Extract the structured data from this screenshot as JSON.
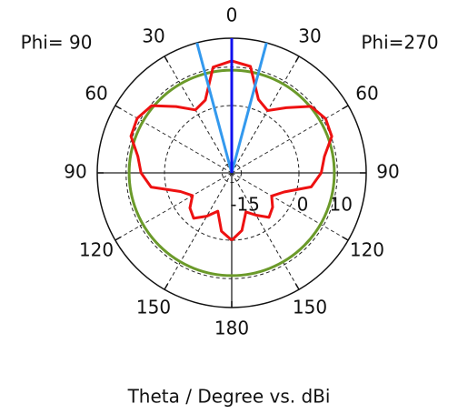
{
  "chart_data": {
    "type": "polar",
    "title": "Theta / Degree vs. dBi",
    "left_label": "Phi= 90",
    "right_label": "Phi=270",
    "x": [
      -180,
      -170,
      -160,
      -150,
      -140,
      -130,
      -120,
      -110,
      -100,
      -90,
      -80,
      -70,
      -60,
      -50,
      -40,
      -30,
      -20,
      -10,
      0,
      10,
      20,
      30,
      40,
      50,
      60,
      70,
      80,
      90,
      100,
      110,
      120,
      130,
      140,
      150,
      160,
      170,
      180
    ],
    "series": [
      {
        "color": "#ee1111",
        "values": [
          0.0,
          -2.1,
          -6.9,
          -4.5,
          -2.1,
          -3.3,
          -5.7,
          -3.3,
          3.8,
          6.1,
          7.3,
          10.4,
          10.9,
          9.7,
          5.0,
          1.4,
          2.6,
          10.4,
          11.6,
          10.6,
          2.8,
          1.2,
          4.6,
          9.4,
          10.7,
          10.2,
          7.0,
          5.8,
          3.5,
          -3.0,
          -5.5,
          -3.6,
          -2.4,
          -4.8,
          -6.7,
          -2.3,
          0.0
        ]
      }
    ],
    "rlim": [
      -17.5,
      17.5
    ],
    "rticks": [
      -15,
      0,
      10
    ],
    "thetaticks": [
      0,
      {
        "value": 30,
        "label": "30"
      },
      {
        "value": 60,
        "label": "60"
      },
      {
        "value": 90,
        "label": "90"
      },
      {
        "value": 120,
        "label": "120"
      },
      {
        "value": 150,
        "label": "150"
      },
      180,
      {
        "value": -150,
        "label": "150"
      },
      {
        "value": -120,
        "label": "120"
      },
      {
        "value": -90,
        "label": "90"
      },
      {
        "value": -60,
        "label": "60"
      },
      {
        "value": -30,
        "label": "30"
      }
    ],
    "reference_level": {
      "value": 9.2,
      "color": "#6b9a2a"
    },
    "main_lobe_direction": {
      "value": 0,
      "color": "#1010ee"
    },
    "beamwidth_lines": {
      "values": [
        -15,
        15
      ],
      "color": "#3399ee"
    }
  }
}
